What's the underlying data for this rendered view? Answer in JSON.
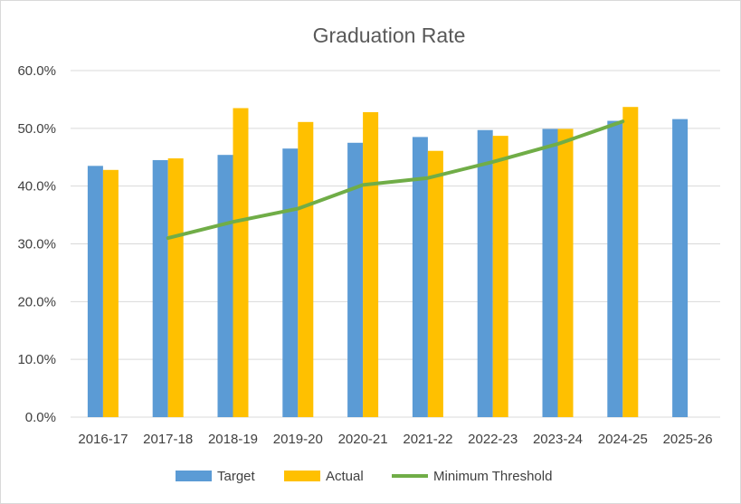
{
  "chart_data": {
    "type": "bar",
    "title": "Graduation Rate",
    "xlabel": "",
    "ylabel": "",
    "ylim": [
      0,
      60
    ],
    "y_ticks": [
      "0.0%",
      "10.0%",
      "20.0%",
      "30.0%",
      "40.0%",
      "50.0%",
      "60.0%"
    ],
    "categories": [
      "2016-17",
      "2017-18",
      "2018-19",
      "2019-20",
      "2020-21",
      "2021-22",
      "2022-23",
      "2023-24",
      "2024-25",
      "2025-26"
    ],
    "series": [
      {
        "name": "Target",
        "kind": "bar",
        "color": "#5b9bd5",
        "values": [
          43.5,
          44.5,
          45.4,
          46.5,
          47.5,
          48.5,
          49.7,
          49.9,
          51.3,
          51.6
        ]
      },
      {
        "name": "Actual",
        "kind": "bar",
        "color": "#ffc000",
        "values": [
          42.8,
          44.8,
          53.5,
          51.1,
          52.8,
          46.1,
          48.7,
          49.9,
          53.7,
          null
        ]
      },
      {
        "name": "Minimum Threshold",
        "kind": "line",
        "color": "#70ad47",
        "values": [
          null,
          31.0,
          33.8,
          36.1,
          40.2,
          41.4,
          44.2,
          47.3,
          51.2,
          null
        ]
      }
    ],
    "grid": true,
    "legend": "bottom"
  }
}
